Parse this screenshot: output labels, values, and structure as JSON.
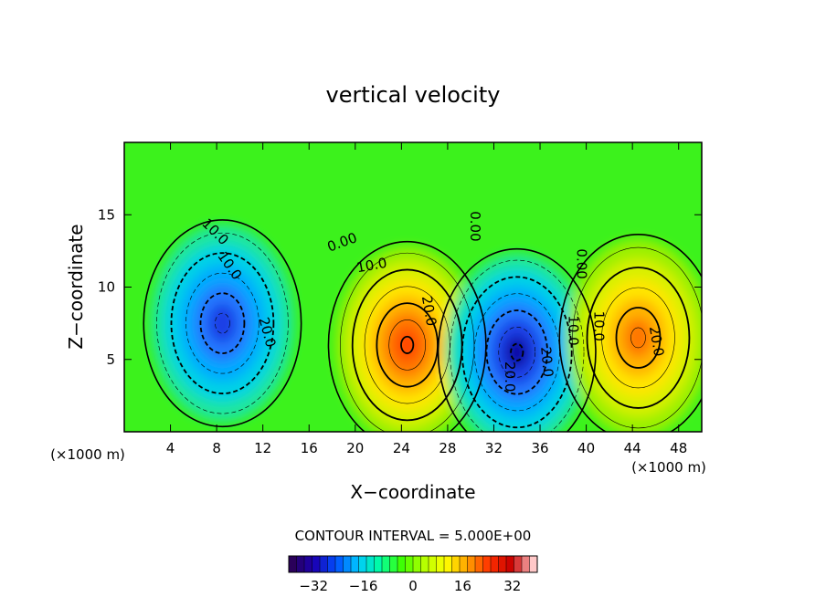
{
  "chart_data": {
    "type": "heatmap",
    "subtype": "filled contour",
    "title": "vertical velocity",
    "xlabel": "X−coordinate",
    "ylabel": "Z−coordinate",
    "x_unit_left": "(×1000 m)",
    "x_unit_right": "(×1000 m)",
    "xlim": [
      0,
      50
    ],
    "ylim": [
      0,
      20
    ],
    "x_ticks": [
      4,
      8,
      12,
      16,
      20,
      24,
      28,
      32,
      36,
      40,
      44,
      48
    ],
    "y_ticks": [
      5,
      10,
      15
    ],
    "contour_interval_label": "CONTOUR INTERVAL = 5.000E+00",
    "contour_labels": [
      "0.00",
      "10.0",
      "20.0",
      "0.00",
      "10.0",
      "20.0",
      "−10.0",
      "−20.0",
      "0.00",
      "−10.0",
      "−20.0",
      "10.0",
      "20.0"
    ],
    "contour_label_text": [
      "0.00",
      "10.0",
      "20.0",
      "0.00",
      "10.0",
      "20.0",
      "10.0",
      "20.0",
      "0.00",
      "10.0",
      "20.0",
      "10.0",
      "20.0"
    ],
    "cells": [
      {
        "sign": "negative",
        "x_center": 8.5,
        "z_center": 7.5,
        "peak": -24
      },
      {
        "sign": "positive",
        "x_center": 24.5,
        "z_center": 6.0,
        "peak": 28
      },
      {
        "sign": "negative",
        "x_center": 34.0,
        "z_center": 5.5,
        "peak": -30
      },
      {
        "sign": "positive",
        "x_center": 44.5,
        "z_center": 6.5,
        "peak": 27
      }
    ],
    "colorbar": {
      "min": -40,
      "max": 40,
      "ticks": [
        "−32",
        "−16",
        "0",
        "16",
        "32"
      ],
      "colors": [
        "#2a005a",
        "#1a00b4",
        "#0050ff",
        "#00c8ff",
        "#00ffa0",
        "#40ff00",
        "#b4ff00",
        "#ffff00",
        "#ffa000",
        "#ff3000",
        "#c80000",
        "#ffc8c8"
      ]
    },
    "grid": false,
    "legend": "bottom-center colorbar"
  }
}
